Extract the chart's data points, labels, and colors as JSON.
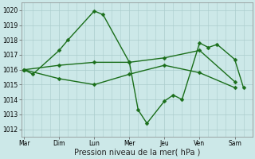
{
  "bg_color": "#cce8e8",
  "grid_color": "#aacccc",
  "line_color": "#1a6e1a",
  "xlabel": "Pression niveau de la mer( hPa )",
  "ylim": [
    1011.5,
    1020.5
  ],
  "yticks": [
    1012,
    1013,
    1014,
    1015,
    1016,
    1017,
    1018,
    1019,
    1020
  ],
  "day_labels": [
    "Mar",
    "Dim",
    "Lun",
    "Mer",
    "Jeu",
    "Ven",
    "Sam"
  ],
  "day_positions": [
    0,
    4,
    8,
    12,
    16,
    20,
    24
  ],
  "xlim": [
    -0.3,
    26.0
  ],
  "line1_x": [
    0,
    1,
    4,
    5,
    8,
    9,
    12,
    13,
    14,
    16,
    17,
    18,
    20,
    21,
    22,
    24,
    25
  ],
  "line1_y": [
    1016.0,
    1015.7,
    1017.3,
    1018.0,
    1019.95,
    1019.7,
    1016.5,
    1013.3,
    1012.4,
    1013.9,
    1014.3,
    1014.0,
    1017.8,
    1017.5,
    1017.7,
    1016.7,
    1014.8
  ],
  "line2_x": [
    0,
    4,
    8,
    12,
    16,
    20,
    24
  ],
  "line2_y": [
    1016.0,
    1016.3,
    1016.5,
    1016.5,
    1016.8,
    1017.3,
    1015.2
  ],
  "line3_x": [
    0,
    4,
    8,
    12,
    16,
    20,
    24
  ],
  "line3_y": [
    1016.0,
    1015.4,
    1015.0,
    1015.7,
    1016.3,
    1015.8,
    1014.8
  ],
  "marker_size": 2.5,
  "line_width": 1.0,
  "tick_labelsize": 5.5,
  "xlabel_fontsize": 7.0
}
